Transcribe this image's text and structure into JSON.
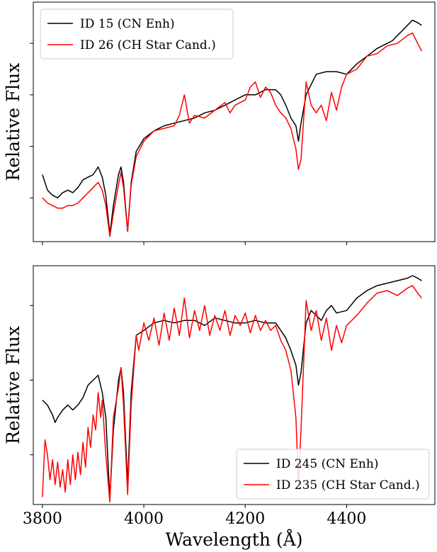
{
  "chart_data": [
    {
      "type": "line",
      "ylabel": "Relative Flux",
      "xlabel": "",
      "xlim": [
        3782,
        4574
      ],
      "ylim": [
        0.13,
        1.06
      ],
      "x_ticks": [
        3800,
        4000,
        4200,
        4400
      ],
      "x_ticklabels_visible": false,
      "y_ticks": [
        0.3,
        0.5,
        0.7,
        0.9
      ],
      "y_ticklabels_visible": false,
      "legend": "top-left",
      "series": [
        {
          "name": "ID 15 (CN Enh)",
          "color": "#000000",
          "points": [
            [
              3800,
              0.39
            ],
            [
              3810,
              0.33
            ],
            [
              3820,
              0.31
            ],
            [
              3830,
              0.3
            ],
            [
              3840,
              0.32
            ],
            [
              3850,
              0.33
            ],
            [
              3860,
              0.32
            ],
            [
              3870,
              0.34
            ],
            [
              3880,
              0.37
            ],
            [
              3890,
              0.38
            ],
            [
              3900,
              0.39
            ],
            [
              3910,
              0.42
            ],
            [
              3918,
              0.38
            ],
            [
              3925,
              0.31
            ],
            [
              3933,
              0.16
            ],
            [
              3940,
              0.27
            ],
            [
              3950,
              0.39
            ],
            [
              3955,
              0.42
            ],
            [
              3960,
              0.36
            ],
            [
              3968,
              0.17
            ],
            [
              3975,
              0.36
            ],
            [
              3985,
              0.48
            ],
            [
              4000,
              0.53
            ],
            [
              4020,
              0.56
            ],
            [
              4040,
              0.58
            ],
            [
              4060,
              0.59
            ],
            [
              4080,
              0.6
            ],
            [
              4100,
              0.61
            ],
            [
              4120,
              0.63
            ],
            [
              4140,
              0.64
            ],
            [
              4160,
              0.66
            ],
            [
              4180,
              0.68
            ],
            [
              4200,
              0.7
            ],
            [
              4220,
              0.7
            ],
            [
              4240,
              0.72
            ],
            [
              4260,
              0.72
            ],
            [
              4270,
              0.7
            ],
            [
              4280,
              0.66
            ],
            [
              4290,
              0.61
            ],
            [
              4300,
              0.58
            ],
            [
              4305,
              0.52
            ],
            [
              4310,
              0.59
            ],
            [
              4320,
              0.7
            ],
            [
              4330,
              0.74
            ],
            [
              4340,
              0.78
            ],
            [
              4360,
              0.79
            ],
            [
              4380,
              0.79
            ],
            [
              4400,
              0.78
            ],
            [
              4420,
              0.82
            ],
            [
              4440,
              0.85
            ],
            [
              4460,
              0.88
            ],
            [
              4480,
              0.9
            ],
            [
              4490,
              0.91
            ],
            [
              4500,
              0.93
            ],
            [
              4510,
              0.95
            ],
            [
              4520,
              0.97
            ],
            [
              4530,
              0.99
            ],
            [
              4540,
              0.98
            ],
            [
              4548,
              0.97
            ]
          ]
        },
        {
          "name": "ID 26 (CH Star Cand.)",
          "color": "#ff0000",
          "points": [
            [
              3800,
              0.3
            ],
            [
              3810,
              0.28
            ],
            [
              3820,
              0.27
            ],
            [
              3830,
              0.26
            ],
            [
              3840,
              0.26
            ],
            [
              3850,
              0.27
            ],
            [
              3860,
              0.27
            ],
            [
              3870,
              0.28
            ],
            [
              3880,
              0.3
            ],
            [
              3890,
              0.32
            ],
            [
              3900,
              0.34
            ],
            [
              3910,
              0.36
            ],
            [
              3918,
              0.33
            ],
            [
              3925,
              0.27
            ],
            [
              3933,
              0.15
            ],
            [
              3940,
              0.24
            ],
            [
              3950,
              0.35
            ],
            [
              3955,
              0.4
            ],
            [
              3960,
              0.34
            ],
            [
              3968,
              0.17
            ],
            [
              3975,
              0.35
            ],
            [
              3985,
              0.46
            ],
            [
              4000,
              0.52
            ],
            [
              4020,
              0.56
            ],
            [
              4040,
              0.57
            ],
            [
              4060,
              0.58
            ],
            [
              4070,
              0.62
            ],
            [
              4080,
              0.7
            ],
            [
              4090,
              0.59
            ],
            [
              4100,
              0.62
            ],
            [
              4120,
              0.61
            ],
            [
              4140,
              0.64
            ],
            [
              4160,
              0.67
            ],
            [
              4170,
              0.63
            ],
            [
              4180,
              0.66
            ],
            [
              4200,
              0.68
            ],
            [
              4210,
              0.73
            ],
            [
              4220,
              0.75
            ],
            [
              4230,
              0.69
            ],
            [
              4240,
              0.73
            ],
            [
              4250,
              0.71
            ],
            [
              4260,
              0.66
            ],
            [
              4270,
              0.63
            ],
            [
              4280,
              0.61
            ],
            [
              4290,
              0.57
            ],
            [
              4300,
              0.49
            ],
            [
              4305,
              0.41
            ],
            [
              4310,
              0.45
            ],
            [
              4320,
              0.75
            ],
            [
              4330,
              0.66
            ],
            [
              4340,
              0.63
            ],
            [
              4350,
              0.66
            ],
            [
              4360,
              0.6
            ],
            [
              4370,
              0.71
            ],
            [
              4380,
              0.64
            ],
            [
              4390,
              0.73
            ],
            [
              4400,
              0.78
            ],
            [
              4420,
              0.8
            ],
            [
              4440,
              0.85
            ],
            [
              4460,
              0.86
            ],
            [
              4480,
              0.89
            ],
            [
              4500,
              0.9
            ],
            [
              4520,
              0.93
            ],
            [
              4530,
              0.94
            ],
            [
              4540,
              0.9
            ],
            [
              4548,
              0.87
            ]
          ]
        }
      ]
    },
    {
      "type": "line",
      "ylabel": "Relative Flux",
      "xlabel": "Wavelength (Å)",
      "xlim": [
        3782,
        4574
      ],
      "ylim": [
        0.1,
        1.06
      ],
      "x_ticks": [
        3800,
        4000,
        4200,
        4400
      ],
      "x_ticklabels": [
        "3800",
        "4000",
        "4200",
        "4400"
      ],
      "y_ticks": [
        0.3,
        0.6,
        0.9
      ],
      "y_ticklabels_visible": false,
      "legend": "bottom-right",
      "series": [
        {
          "name": "ID 245 (CN Enh)",
          "color": "#000000",
          "points": [
            [
              3800,
              0.52
            ],
            [
              3810,
              0.5
            ],
            [
              3820,
              0.46
            ],
            [
              3825,
              0.43
            ],
            [
              3830,
              0.45
            ],
            [
              3840,
              0.48
            ],
            [
              3850,
              0.5
            ],
            [
              3860,
              0.48
            ],
            [
              3870,
              0.5
            ],
            [
              3880,
              0.53
            ],
            [
              3890,
              0.58
            ],
            [
              3900,
              0.6
            ],
            [
              3910,
              0.62
            ],
            [
              3918,
              0.55
            ],
            [
              3925,
              0.45
            ],
            [
              3933,
              0.12
            ],
            [
              3940,
              0.4
            ],
            [
              3950,
              0.6
            ],
            [
              3955,
              0.65
            ],
            [
              3960,
              0.55
            ],
            [
              3968,
              0.18
            ],
            [
              3975,
              0.55
            ],
            [
              3985,
              0.78
            ],
            [
              4000,
              0.8
            ],
            [
              4020,
              0.83
            ],
            [
              4040,
              0.84
            ],
            [
              4060,
              0.83
            ],
            [
              4080,
              0.84
            ],
            [
              4100,
              0.84
            ],
            [
              4120,
              0.82
            ],
            [
              4140,
              0.85
            ],
            [
              4160,
              0.84
            ],
            [
              4180,
              0.83
            ],
            [
              4200,
              0.83
            ],
            [
              4220,
              0.84
            ],
            [
              4240,
              0.83
            ],
            [
              4260,
              0.83
            ],
            [
              4270,
              0.8
            ],
            [
              4280,
              0.77
            ],
            [
              4290,
              0.72
            ],
            [
              4300,
              0.66
            ],
            [
              4305,
              0.58
            ],
            [
              4310,
              0.63
            ],
            [
              4320,
              0.83
            ],
            [
              4330,
              0.88
            ],
            [
              4340,
              0.86
            ],
            [
              4350,
              0.84
            ],
            [
              4360,
              0.88
            ],
            [
              4370,
              0.9
            ],
            [
              4380,
              0.87
            ],
            [
              4400,
              0.88
            ],
            [
              4420,
              0.93
            ],
            [
              4440,
              0.96
            ],
            [
              4460,
              0.98
            ],
            [
              4480,
              0.99
            ],
            [
              4500,
              1.0
            ],
            [
              4520,
              1.01
            ],
            [
              4530,
              1.02
            ],
            [
              4540,
              1.01
            ],
            [
              4548,
              1.0
            ]
          ]
        },
        {
          "name": "ID 235 (CH Star Cand.)",
          "color": "#ff0000",
          "points": [
            [
              3800,
              0.13
            ],
            [
              3805,
              0.36
            ],
            [
              3810,
              0.3
            ],
            [
              3815,
              0.2
            ],
            [
              3820,
              0.28
            ],
            [
              3825,
              0.18
            ],
            [
              3830,
              0.27
            ],
            [
              3835,
              0.17
            ],
            [
              3840,
              0.24
            ],
            [
              3845,
              0.15
            ],
            [
              3850,
              0.28
            ],
            [
              3855,
              0.18
            ],
            [
              3860,
              0.3
            ],
            [
              3865,
              0.2
            ],
            [
              3870,
              0.31
            ],
            [
              3875,
              0.22
            ],
            [
              3880,
              0.35
            ],
            [
              3885,
              0.25
            ],
            [
              3890,
              0.41
            ],
            [
              3895,
              0.33
            ],
            [
              3900,
              0.46
            ],
            [
              3905,
              0.4
            ],
            [
              3910,
              0.55
            ],
            [
              3915,
              0.45
            ],
            [
              3918,
              0.52
            ],
            [
              3925,
              0.3
            ],
            [
              3933,
              0.11
            ],
            [
              3940,
              0.45
            ],
            [
              3950,
              0.57
            ],
            [
              3955,
              0.65
            ],
            [
              3960,
              0.5
            ],
            [
              3968,
              0.14
            ],
            [
              3975,
              0.5
            ],
            [
              3985,
              0.78
            ],
            [
              3990,
              0.72
            ],
            [
              4000,
              0.83
            ],
            [
              4010,
              0.76
            ],
            [
              4020,
              0.85
            ],
            [
              4030,
              0.74
            ],
            [
              4040,
              0.87
            ],
            [
              4050,
              0.76
            ],
            [
              4060,
              0.89
            ],
            [
              4070,
              0.78
            ],
            [
              4080,
              0.93
            ],
            [
              4090,
              0.77
            ],
            [
              4100,
              0.88
            ],
            [
              4110,
              0.8
            ],
            [
              4120,
              0.9
            ],
            [
              4130,
              0.78
            ],
            [
              4140,
              0.86
            ],
            [
              4150,
              0.8
            ],
            [
              4160,
              0.88
            ],
            [
              4170,
              0.78
            ],
            [
              4180,
              0.86
            ],
            [
              4190,
              0.82
            ],
            [
              4200,
              0.87
            ],
            [
              4210,
              0.79
            ],
            [
              4220,
              0.86
            ],
            [
              4230,
              0.8
            ],
            [
              4240,
              0.84
            ],
            [
              4250,
              0.8
            ],
            [
              4260,
              0.82
            ],
            [
              4270,
              0.76
            ],
            [
              4280,
              0.72
            ],
            [
              4290,
              0.64
            ],
            [
              4300,
              0.45
            ],
            [
              4305,
              0.18
            ],
            [
              4310,
              0.4
            ],
            [
              4320,
              0.92
            ],
            [
              4330,
              0.8
            ],
            [
              4340,
              0.88
            ],
            [
              4350,
              0.76
            ],
            [
              4360,
              0.85
            ],
            [
              4370,
              0.72
            ],
            [
              4380,
              0.82
            ],
            [
              4390,
              0.75
            ],
            [
              4400,
              0.82
            ],
            [
              4420,
              0.86
            ],
            [
              4440,
              0.91
            ],
            [
              4460,
              0.95
            ],
            [
              4480,
              0.96
            ],
            [
              4500,
              0.94
            ],
            [
              4520,
              0.97
            ],
            [
              4530,
              0.98
            ],
            [
              4540,
              0.95
            ],
            [
              4548,
              0.93
            ]
          ]
        }
      ]
    }
  ]
}
